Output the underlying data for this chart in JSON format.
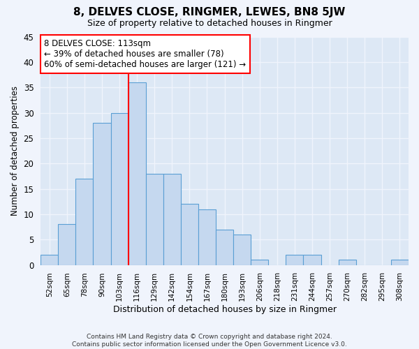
{
  "title": "8, DELVES CLOSE, RINGMER, LEWES, BN8 5JW",
  "subtitle": "Size of property relative to detached houses in Ringmer",
  "xlabel": "Distribution of detached houses by size in Ringmer",
  "ylabel": "Number of detached properties",
  "categories": [
    "52sqm",
    "65sqm",
    "78sqm",
    "90sqm",
    "103sqm",
    "116sqm",
    "129sqm",
    "142sqm",
    "154sqm",
    "167sqm",
    "180sqm",
    "193sqm",
    "206sqm",
    "218sqm",
    "231sqm",
    "244sqm",
    "257sqm",
    "270sqm",
    "282sqm",
    "295sqm",
    "308sqm"
  ],
  "values": [
    2,
    8,
    17,
    28,
    30,
    36,
    18,
    18,
    12,
    11,
    7,
    6,
    1,
    0,
    2,
    2,
    0,
    1,
    0,
    0,
    1
  ],
  "bar_color": "#c5d8ef",
  "bar_edge_color": "#5a9fd4",
  "vline_color": "red",
  "vline_index": 5,
  "annotation_text": "8 DELVES CLOSE: 113sqm\n← 39% of detached houses are smaller (78)\n60% of semi-detached houses are larger (121) →",
  "annotation_box_edge_color": "red",
  "ylim": [
    0,
    45
  ],
  "yticks": [
    0,
    5,
    10,
    15,
    20,
    25,
    30,
    35,
    40,
    45
  ],
  "fig_bg_color": "#f0f4fc",
  "axes_bg_color": "#dde8f5",
  "grid_color": "#f0f4fc",
  "footer_line1": "Contains HM Land Registry data © Crown copyright and database right 2024.",
  "footer_line2": "Contains public sector information licensed under the Open Government Licence v3.0."
}
